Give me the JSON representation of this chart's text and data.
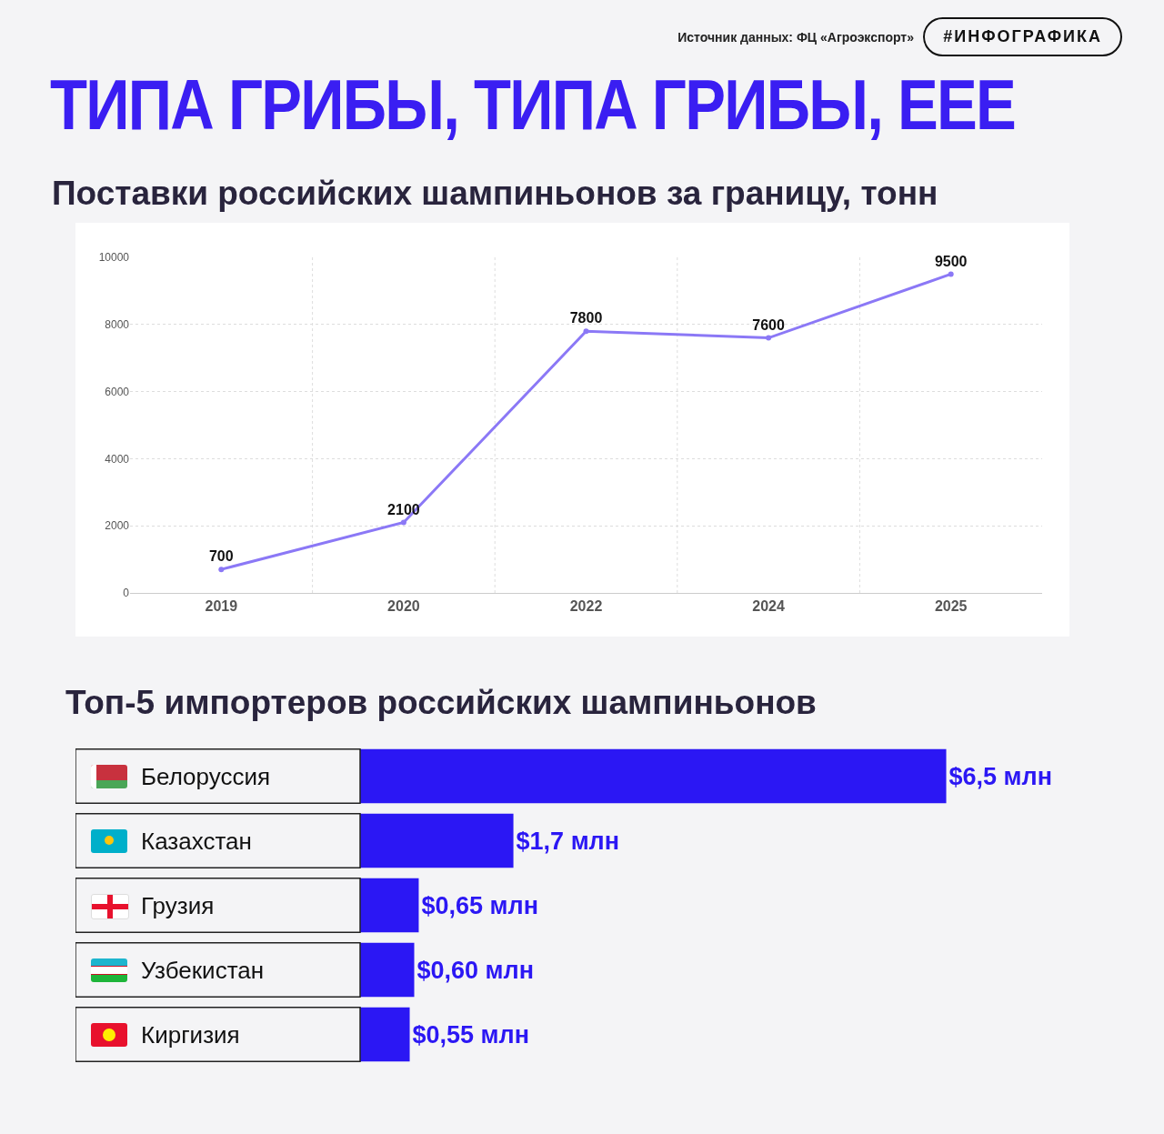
{
  "chart_data": [
    {
      "type": "line",
      "title": "ТИПА ГРИБЫ, ТИПА ГРИБЫ, ЕЕЕ",
      "subtitle": "Поставки российских шампиньонов за границу, тонн",
      "annotations": [
        "Источник данных: ФЦ «Агроэкспорт»",
        "#ИНФОГРАФИКА"
      ],
      "categories": [
        "2019",
        "2020",
        "2022",
        "2024",
        "2025"
      ],
      "series": [
        {
          "color": "#8b78f6",
          "values": [
            700,
            2100,
            7800,
            7600,
            9500
          ]
        }
      ],
      "ylim": [
        0,
        10000
      ],
      "yticks": [
        0,
        2000,
        4000,
        6000,
        8000,
        10000
      ],
      "grid": true,
      "marker": "circle",
      "data_labels": true
    },
    {
      "type": "bar",
      "orientation": "horizontal",
      "title": "Топ-5 импортеров российских шампиньонов",
      "categories": [
        "Белоруссия",
        "Казахстан",
        "Грузия",
        "Узбекистан",
        "Киргизия"
      ],
      "values": [
        6.5,
        1.7,
        0.65,
        0.6,
        0.55
      ],
      "color": "#2b17f4",
      "value_labels": [
        "$6,5 млн",
        "$1,7 млн",
        "$0,65 млн",
        "$0,60 млн",
        "$0,55 млн"
      ]
    }
  ]
}
